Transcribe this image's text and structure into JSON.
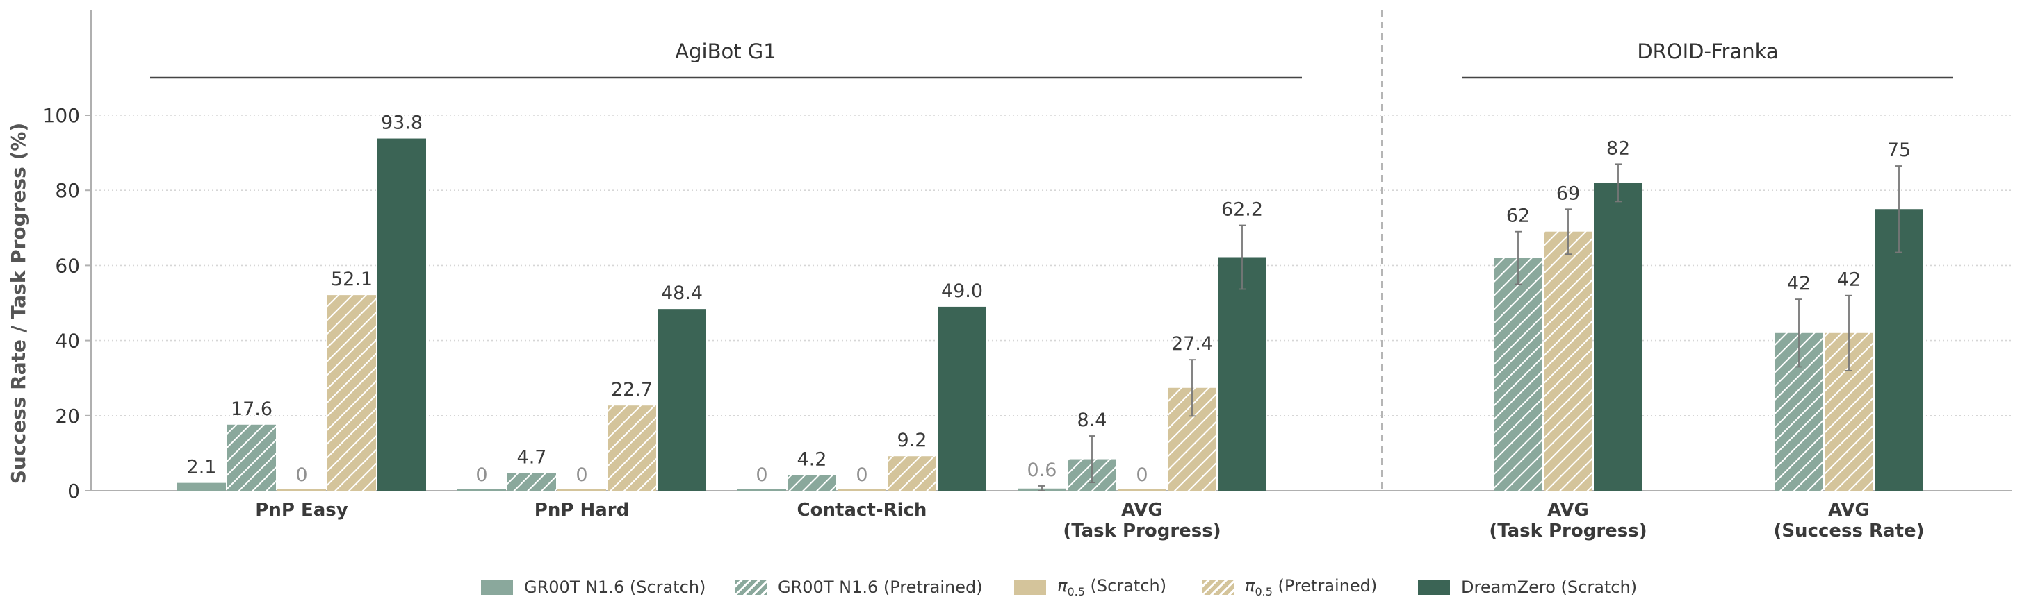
{
  "chart_data": {
    "type": "bar",
    "ylabel": "Success Rate / Task Progress (%)",
    "ylim": [
      0,
      100
    ],
    "yticks": [
      0,
      20,
      40,
      60,
      80,
      100
    ],
    "grid": true,
    "legend_position": "bottom",
    "panels": [
      {
        "title": "AgiBot G1",
        "categories": [
          "PnP Easy",
          "PnP Hard",
          "Contact-Rich",
          "AVG\n(Task Progress)"
        ],
        "series": [
          {
            "name": "GR00T N1.6 (Scratch)",
            "values": [
              2.1,
              0,
              0,
              0.6
            ],
            "labels": [
              "2.1",
              "0",
              "0",
              "0.6"
            ],
            "errors": [
              null,
              null,
              null,
              0.7
            ]
          },
          {
            "name": "GR00T N1.6 (Pretrained)",
            "values": [
              17.6,
              4.7,
              4.2,
              8.4
            ],
            "labels": [
              "17.6",
              "4.7",
              "4.2",
              "8.4"
            ],
            "errors": [
              null,
              null,
              null,
              6.2
            ]
          },
          {
            "name": "π0.5 (Scratch)",
            "values": [
              0,
              0,
              0,
              0
            ],
            "labels": [
              "0",
              "0",
              "0",
              "0"
            ],
            "errors": [
              null,
              null,
              null,
              null
            ]
          },
          {
            "name": "π0.5 (Pretrained)",
            "values": [
              52.1,
              22.7,
              9.2,
              27.4
            ],
            "labels": [
              "52.1",
              "22.7",
              "9.2",
              "27.4"
            ],
            "errors": [
              null,
              null,
              null,
              7.5
            ]
          },
          {
            "name": "DreamZero (Scratch)",
            "values": [
              93.8,
              48.4,
              49.0,
              62.2
            ],
            "labels": [
              "93.8",
              "48.4",
              "49.0",
              "62.2"
            ],
            "errors": [
              null,
              null,
              null,
              8.5
            ]
          }
        ]
      },
      {
        "title": "DROID-Franka",
        "categories": [
          "AVG\n(Task Progress)",
          "AVG\n(Success Rate)"
        ],
        "series": [
          {
            "name": "GR00T N1.6 (Pretrained)",
            "values": [
              62,
              42
            ],
            "labels": [
              "62",
              "42"
            ],
            "errors": [
              7,
              9
            ]
          },
          {
            "name": "π0.5 (Pretrained)",
            "values": [
              69,
              42
            ],
            "labels": [
              "69",
              "42"
            ],
            "errors": [
              6,
              10
            ]
          },
          {
            "name": "DreamZero (Scratch)",
            "values": [
              82,
              75
            ],
            "labels": [
              "82",
              "75"
            ],
            "errors": [
              5,
              11.5
            ]
          }
        ]
      }
    ]
  },
  "legend": [
    {
      "key": "GR00T N1.6 (Scratch)",
      "text": "GR00T N1.6 (Scratch)",
      "color": "#8aa89c",
      "hatch": false
    },
    {
      "key": "GR00T N1.6 (Pretrained)",
      "text": "GR00T N1.6 (Pretrained)",
      "color": "#8aa89c",
      "hatch": true
    },
    {
      "key": "π0.5 (Scratch)",
      "pre": "π",
      "sub": "0.5",
      "post": " (Scratch)",
      "color": "#d4c49b",
      "hatch": false
    },
    {
      "key": "π0.5 (Pretrained)",
      "pre": "π",
      "sub": "0.5",
      "post": " (Pretrained)",
      "color": "#d4c49b",
      "hatch": true
    },
    {
      "key": "DreamZero (Scratch)",
      "text": "DreamZero (Scratch)",
      "color": "#3b6455",
      "hatch": false
    }
  ],
  "colors": {
    "groot": "#8aa89c",
    "pi": "#d4c49b",
    "dreamzero": "#3b6455",
    "zero_label": "#909090",
    "axis": "#b0b0b0"
  }
}
